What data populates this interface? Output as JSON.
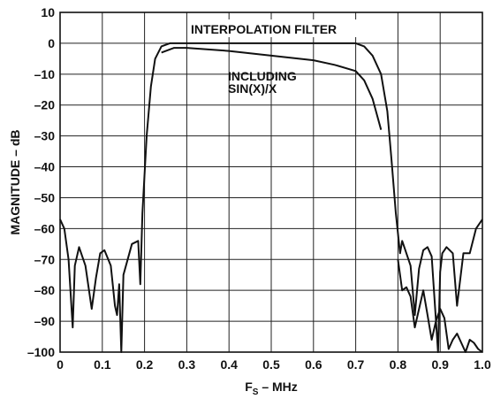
{
  "chart_data": {
    "type": "line",
    "title": "",
    "xlabel": "F",
    "xlabel_sub": "S",
    "xlabel_suffix": " – MHz",
    "ylabel": "MAGNITUDE – dB",
    "xlim": [
      0,
      1.0
    ],
    "ylim": [
      -100,
      10
    ],
    "xticks": [
      "0",
      "0.1",
      "0.2",
      "0.3",
      "0.4",
      "0.5",
      "0.6",
      "0.7",
      "0.8",
      "0.9",
      "1.0"
    ],
    "yticks": [
      "10",
      "0",
      "–10",
      "–20",
      "–30",
      "–40",
      "–50",
      "–60",
      "–70",
      "–80",
      "–90",
      "–100"
    ],
    "grid": true,
    "annotations": [
      {
        "text": "INTERPOLATION FILTER",
        "x": 0.5,
        "y": 4
      },
      {
        "text": "INCLUDING",
        "x": 0.55,
        "y": -10
      },
      {
        "text": "SIN(X)/X",
        "x": 0.55,
        "y": -14
      }
    ],
    "series": [
      {
        "x": [
          0,
          0.01,
          0.02,
          0.03,
          0.035,
          0.045,
          0.06,
          0.075,
          0.085,
          0.095,
          0.105,
          0.12,
          0.13,
          0.135,
          0.14,
          0.145,
          0.15,
          0.16,
          0.17,
          0.185,
          0.19,
          0.195,
          0.205,
          0.215,
          0.225,
          0.24,
          0.26,
          0.28,
          0.3,
          0.4,
          0.5,
          0.6,
          0.7,
          0.72,
          0.74,
          0.76,
          0.775,
          0.785,
          0.795,
          0.805,
          0.81,
          0.815,
          0.83,
          0.84,
          0.85,
          0.86,
          0.87,
          0.88,
          0.895,
          0.9,
          0.905,
          0.915,
          0.93,
          0.94,
          0.955,
          0.97,
          0.985,
          1.0
        ],
        "y": [
          -57,
          -60,
          -70,
          -92,
          -72,
          -66,
          -72,
          -86,
          -76,
          -68,
          -67,
          -72,
          -85,
          -88,
          -78,
          -100,
          -75,
          -70,
          -65,
          -64,
          -78,
          -55,
          -30,
          -14,
          -5,
          -1,
          0,
          0,
          0,
          0,
          0,
          0,
          0,
          -1,
          -4,
          -10,
          -22,
          -38,
          -55,
          -68,
          -64,
          -66,
          -72,
          -88,
          -73,
          -67,
          -66,
          -69,
          -100,
          -74,
          -68,
          -66,
          -68,
          -85,
          -68,
          -68,
          -60,
          -57
        ]
      },
      {
        "x": [
          0.8,
          0.81,
          0.82,
          0.83,
          0.84,
          0.85,
          0.86,
          0.87,
          0.88,
          0.89,
          0.9,
          0.91,
          0.92,
          0.93,
          0.94,
          0.95,
          0.96,
          0.97,
          0.98,
          0.99,
          1.0
        ],
        "y": [
          -70,
          -80,
          -79,
          -82,
          -92,
          -86,
          -80,
          -88,
          -96,
          -90,
          -86,
          -89,
          -99,
          -96,
          -94,
          -97,
          -100,
          -96,
          -97,
          -99,
          -100
        ]
      },
      {
        "x": [
          0.24,
          0.27,
          0.3,
          0.4,
          0.5,
          0.6,
          0.65,
          0.7,
          0.72,
          0.74,
          0.76
        ],
        "y": [
          -3,
          -1.5,
          -1.5,
          -2.5,
          -4,
          -5.5,
          -7,
          -9,
          -12,
          -18,
          -28
        ]
      }
    ]
  }
}
